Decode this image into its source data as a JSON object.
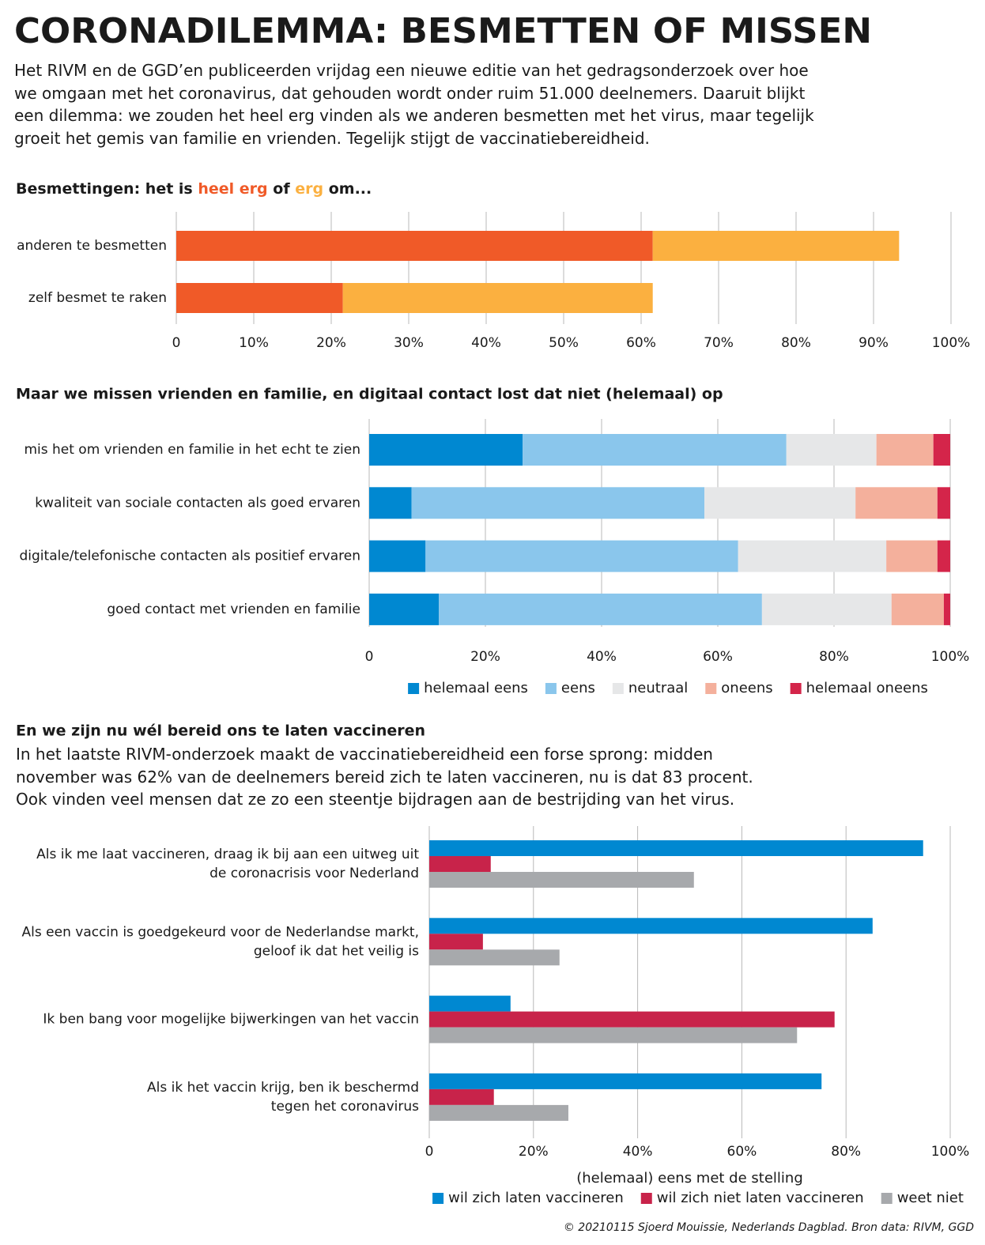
{
  "header": {
    "title": "CORONADILEMMA: BESMETTEN OF MISSEN",
    "intro": "Het RIVM en de GGD’en publiceerden vrijdag een nieuwe editie van het gedragsonderzoek over hoe we omgaan met het coronavirus, dat gehouden wordt onder ruim 51.000 deelnemers. Daaruit blijkt een dilemma: we zouden het heel erg vinden als we anderen besmetten met het virus, maar tegelijk groeit het gemis van familie en vrienden. Tegelijk stijgt de vaccinatiebereidheid."
  },
  "chart_data": [
    {
      "type": "bar",
      "stacked": true,
      "title_parts": [
        "Besmettingen: het is",
        "of",
        "om..."
      ],
      "categories": [
        "anderen te besmetten",
        "zelf besmet te raken"
      ],
      "series": [
        {
          "name": "heel erg",
          "color": "#f05a28",
          "values": [
            61.5,
            21.5
          ]
        },
        {
          "name": "erg",
          "color": "#fbb040",
          "values": [
            31.8,
            40
          ]
        }
      ],
      "xlim": [
        0,
        100
      ],
      "xticks": [
        0,
        {
          "value": 10,
          "label": "10%"
        },
        {
          "value": 20,
          "label": "20%"
        },
        {
          "value": 30,
          "label": "30%"
        },
        {
          "value": 40,
          "label": "40%"
        },
        {
          "value": 50,
          "label": "50%"
        },
        {
          "value": 60,
          "label": "60%"
        },
        {
          "value": 70,
          "label": "70%"
        },
        {
          "value": 80,
          "label": "80%"
        },
        {
          "value": 90,
          "label": "90%"
        },
        {
          "value": 100,
          "label": "100%"
        }
      ],
      "grid": true
    },
    {
      "type": "bar",
      "stacked": true,
      "title": "Maar we missen vrienden en familie, en digitaal contact lost dat niet (helemaal) op",
      "categories": [
        "mis het om vrienden en familie in het echt te zien",
        "kwaliteit van sociale contacten als goed ervaren",
        "digitale/telefonische contacten als positief ervaren",
        "goed contact met vrienden en familie"
      ],
      "series": [
        {
          "name": "helemaal eens",
          "color": "#0088d1",
          "values": [
            26.4,
            7.3,
            9.7,
            12.0
          ]
        },
        {
          "name": "eens",
          "color": "#8ac6ec",
          "values": [
            45.4,
            50.4,
            53.8,
            55.6
          ]
        },
        {
          "name": "neutraal",
          "color": "#e6e7e8",
          "values": [
            15.5,
            26.0,
            25.5,
            22.3
          ]
        },
        {
          "name": "oneens",
          "color": "#f4b09c",
          "values": [
            9.8,
            14.1,
            8.8,
            9.0
          ]
        },
        {
          "name": "helemaal oneens",
          "color": "#d4254a",
          "values": [
            2.9,
            2.2,
            2.2,
            1.1
          ]
        }
      ],
      "xlim": [
        0,
        100
      ],
      "xticks": [
        0,
        {
          "value": 20,
          "label": "20%"
        },
        {
          "value": 40,
          "label": "40%"
        },
        {
          "value": 60,
          "label": "60%"
        },
        {
          "value": 80,
          "label": "80%"
        },
        {
          "value": 100,
          "label": "100%"
        }
      ],
      "grid": true,
      "legend": "bottom"
    },
    {
      "type": "bar",
      "stacked": false,
      "title": "En we zijn nu wél bereid ons te laten vaccineren",
      "subtitle": "In het laatste RIVM-onderzoek maakt de vaccinatiebereidheid een forse sprong: midden november was 62% van de deelnemers bereid zich te laten vaccineren, nu is dat 83 procent. Ook vinden veel mensen dat ze zo een steentje bijdragen aan de bestrijding van het virus.",
      "categories": [
        [
          "Als ik me laat vaccineren, draag ik bij aan een uitweg uit",
          "de coronacrisis voor Nederland"
        ],
        [
          "Als een vaccin is goedgekeurd voor de Nederlandse markt,",
          "geloof ik dat het veilig is"
        ],
        [
          "Ik ben bang voor mogelijke bijwerkingen van het vaccin"
        ],
        [
          "Als ik het vaccin krijg, ben ik beschermd",
          "tegen het coronavirus"
        ]
      ],
      "series": [
        {
          "name": "wil zich laten vaccineren",
          "color": "#0088d1",
          "values": [
            94.8,
            85.1,
            15.6,
            75.3
          ]
        },
        {
          "name": "wil zich niet laten vaccineren",
          "color": "#c8234a",
          "values": [
            11.8,
            10.3,
            77.8,
            12.4
          ]
        },
        {
          "name": "weet niet",
          "color": "#a7a9ac",
          "values": [
            50.8,
            25.0,
            70.6,
            26.7
          ]
        }
      ],
      "xlabel": "(helemaal) eens met de stelling",
      "xlim": [
        0,
        100
      ],
      "xticks": [
        0,
        {
          "value": 20,
          "label": "20%"
        },
        {
          "value": 40,
          "label": "40%"
        },
        {
          "value": 60,
          "label": "60%"
        },
        {
          "value": 80,
          "label": "80%"
        },
        {
          "value": 100,
          "label": "100%"
        }
      ],
      "grid": true,
      "legend": "bottom"
    }
  ],
  "footer": "© 20210115 Sjoerd Mouissie, Nederlands Dagblad. Bron data: RIVM, GGD"
}
